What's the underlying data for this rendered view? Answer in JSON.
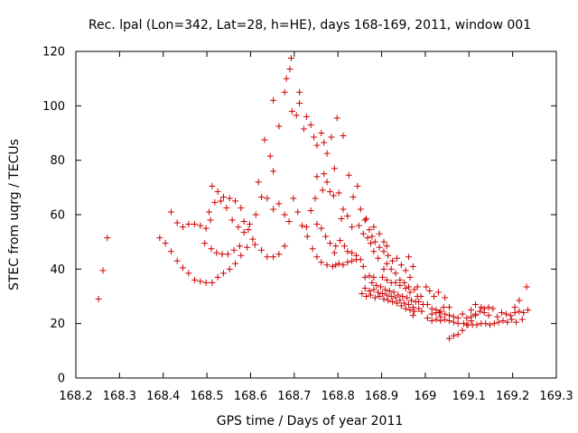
{
  "chart_data": {
    "type": "scatter",
    "title": "Rec. lpal (Lon=342, Lat=28, h=HE), days 168-169, 2011, window 001",
    "xlabel": "GPS time / Days of year 2011",
    "ylabel": "STEC from uqrg / TECUs",
    "xlim": [
      168.2,
      169.3
    ],
    "ylim": [
      0,
      120
    ],
    "xticks": [
      "168.2",
      "168.3",
      "168.4",
      "168.5",
      "168.6",
      "168.7",
      "168.8",
      "168.9",
      "169",
      "169.1",
      "169.2",
      "169.3"
    ],
    "yticks": [
      "0",
      "20",
      "40",
      "60",
      "80",
      "100",
      "120"
    ],
    "grid": false,
    "legend": "none",
    "marker": "+",
    "color": "#cc0000",
    "points": [
      [
        168.252,
        29
      ],
      [
        168.262,
        39.5
      ],
      [
        168.272,
        51.5
      ],
      [
        168.392,
        51.5
      ],
      [
        168.405,
        49.5
      ],
      [
        168.418,
        46.5
      ],
      [
        168.432,
        43
      ],
      [
        168.445,
        40.5
      ],
      [
        168.458,
        38.5
      ],
      [
        168.472,
        36
      ],
      [
        168.485,
        35.5
      ],
      [
        168.498,
        35
      ],
      [
        168.512,
        35
      ],
      [
        168.525,
        37
      ],
      [
        168.538,
        38.5
      ],
      [
        168.552,
        40
      ],
      [
        168.565,
        42
      ],
      [
        168.578,
        45
      ],
      [
        168.592,
        48
      ],
      [
        168.605,
        51
      ],
      [
        168.418,
        61
      ],
      [
        168.432,
        57
      ],
      [
        168.445,
        55.5
      ],
      [
        168.458,
        56.5
      ],
      [
        168.472,
        56.5
      ],
      [
        168.485,
        56
      ],
      [
        168.498,
        55
      ],
      [
        168.508,
        58
      ],
      [
        168.495,
        49.5
      ],
      [
        168.51,
        47.5
      ],
      [
        168.522,
        46
      ],
      [
        168.535,
        45.5
      ],
      [
        168.548,
        45.5
      ],
      [
        168.562,
        47
      ],
      [
        168.575,
        48.5
      ],
      [
        168.512,
        70.5
      ],
      [
        168.525,
        68.5
      ],
      [
        168.538,
        66.5
      ],
      [
        168.552,
        66
      ],
      [
        168.565,
        65
      ],
      [
        168.578,
        62.5
      ],
      [
        168.585,
        57.5
      ],
      [
        168.505,
        61
      ],
      [
        168.518,
        64.5
      ],
      [
        168.532,
        65
      ],
      [
        168.545,
        62.5
      ],
      [
        168.558,
        58
      ],
      [
        168.572,
        55.5
      ],
      [
        168.585,
        53.5
      ],
      [
        168.598,
        56.5
      ],
      [
        168.612,
        60
      ],
      [
        168.625,
        66.5
      ],
      [
        168.638,
        66
      ],
      [
        168.652,
        62
      ],
      [
        168.595,
        54.5
      ],
      [
        168.61,
        49
      ],
      [
        168.625,
        47
      ],
      [
        168.638,
        44.5
      ],
      [
        168.652,
        44.5
      ],
      [
        168.665,
        45.5
      ],
      [
        168.678,
        48.5
      ],
      [
        168.618,
        72
      ],
      [
        168.632,
        87.5
      ],
      [
        168.645,
        81.5
      ],
      [
        168.652,
        76
      ],
      [
        168.652,
        102
      ],
      [
        168.665,
        92.5
      ],
      [
        168.665,
        64
      ],
      [
        168.678,
        60
      ],
      [
        168.688,
        57.5
      ],
      [
        168.678,
        105
      ],
      [
        168.682,
        110
      ],
      [
        168.69,
        113.5
      ],
      [
        168.693,
        117.5
      ],
      [
        168.695,
        98
      ],
      [
        168.705,
        96.5
      ],
      [
        168.712,
        105
      ],
      [
        168.712,
        101
      ],
      [
        168.722,
        91.5
      ],
      [
        168.728,
        96
      ],
      [
        168.738,
        93
      ],
      [
        168.745,
        88.5
      ],
      [
        168.752,
        85.5
      ],
      [
        168.762,
        90
      ],
      [
        168.768,
        86.5
      ],
      [
        168.775,
        82.5
      ],
      [
        168.785,
        88.5
      ],
      [
        168.792,
        77
      ],
      [
        168.798,
        95.5
      ],
      [
        168.812,
        89
      ],
      [
        168.825,
        74.5
      ],
      [
        168.835,
        66.5
      ],
      [
        168.845,
        70.5
      ],
      [
        168.698,
        66
      ],
      [
        168.708,
        61
      ],
      [
        168.718,
        56
      ],
      [
        168.728,
        55.5
      ],
      [
        168.738,
        61.5
      ],
      [
        168.748,
        66
      ],
      [
        168.752,
        74
      ],
      [
        168.765,
        69
      ],
      [
        168.768,
        75
      ],
      [
        168.775,
        72
      ],
      [
        168.782,
        68.5
      ],
      [
        168.79,
        67
      ],
      [
        168.802,
        68
      ],
      [
        168.808,
        58.5
      ],
      [
        168.812,
        62
      ],
      [
        168.822,
        59.5
      ],
      [
        168.832,
        55.5
      ],
      [
        168.73,
        52
      ],
      [
        168.742,
        47.5
      ],
      [
        168.752,
        44.5
      ],
      [
        168.762,
        42.5
      ],
      [
        168.775,
        41.5
      ],
      [
        168.788,
        41
      ],
      [
        168.752,
        56.5
      ],
      [
        168.762,
        55
      ],
      [
        168.772,
        52
      ],
      [
        168.782,
        49.5
      ],
      [
        168.792,
        46
      ],
      [
        168.795,
        41.5
      ],
      [
        168.802,
        42
      ],
      [
        168.812,
        41.5
      ],
      [
        168.822,
        42.5
      ],
      [
        168.832,
        43
      ],
      [
        168.842,
        43.5
      ],
      [
        168.795,
        48.5
      ],
      [
        168.805,
        50.5
      ],
      [
        168.815,
        48.5
      ],
      [
        168.822,
        46.5
      ],
      [
        168.832,
        46
      ],
      [
        168.842,
        45
      ],
      [
        168.852,
        43.5
      ],
      [
        168.858,
        41
      ],
      [
        168.862,
        37
      ],
      [
        168.872,
        37.5
      ],
      [
        168.882,
        37
      ],
      [
        168.848,
        56
      ],
      [
        168.858,
        53
      ],
      [
        168.868,
        51.5
      ],
      [
        168.875,
        49.5
      ],
      [
        168.882,
        46.5
      ],
      [
        168.892,
        44
      ],
      [
        168.862,
        58
      ],
      [
        168.872,
        54.5
      ],
      [
        168.878,
        52
      ],
      [
        168.885,
        50
      ],
      [
        168.895,
        48
      ],
      [
        168.905,
        46.5
      ],
      [
        168.852,
        62
      ],
      [
        168.865,
        58.5
      ],
      [
        168.882,
        55.5
      ],
      [
        168.895,
        53
      ],
      [
        168.905,
        50
      ],
      [
        168.912,
        48.5
      ],
      [
        168.855,
        31
      ],
      [
        168.865,
        30
      ],
      [
        168.875,
        30.5
      ],
      [
        168.885,
        29.5
      ],
      [
        168.895,
        30
      ],
      [
        168.905,
        29
      ],
      [
        168.915,
        28.5
      ],
      [
        168.925,
        28
      ],
      [
        168.935,
        27.5
      ],
      [
        168.945,
        26.5
      ],
      [
        168.955,
        25.5
      ],
      [
        168.965,
        25
      ],
      [
        168.975,
        24.5
      ],
      [
        168.862,
        33
      ],
      [
        168.872,
        32
      ],
      [
        168.882,
        32.5
      ],
      [
        168.892,
        31.5
      ],
      [
        168.902,
        31
      ],
      [
        168.912,
        30.5
      ],
      [
        168.922,
        30
      ],
      [
        168.932,
        29.5
      ],
      [
        168.942,
        28.5
      ],
      [
        168.952,
        27.5
      ],
      [
        168.962,
        27
      ],
      [
        168.972,
        26
      ],
      [
        168.878,
        35
      ],
      [
        168.888,
        34
      ],
      [
        168.898,
        33.5
      ],
      [
        168.908,
        32.5
      ],
      [
        168.918,
        32
      ],
      [
        168.928,
        31.5
      ],
      [
        168.938,
        30.5
      ],
      [
        168.948,
        30
      ],
      [
        168.958,
        29.5
      ],
      [
        168.968,
        28.5
      ],
      [
        168.978,
        28
      ],
      [
        168.905,
        40
      ],
      [
        168.912,
        42
      ],
      [
        168.922,
        40
      ],
      [
        168.932,
        38.5
      ],
      [
        168.942,
        36
      ],
      [
        168.952,
        35
      ],
      [
        168.962,
        33.5
      ],
      [
        168.915,
        45
      ],
      [
        168.925,
        43
      ],
      [
        168.935,
        44
      ],
      [
        168.945,
        41.5
      ],
      [
        168.955,
        39.5
      ],
      [
        168.965,
        37
      ],
      [
        168.932,
        35
      ],
      [
        168.942,
        34
      ],
      [
        168.955,
        33
      ],
      [
        168.965,
        31.5
      ],
      [
        168.975,
        32.5
      ],
      [
        168.982,
        30
      ],
      [
        168.99,
        30
      ],
      [
        168.902,
        37
      ],
      [
        168.912,
        36
      ],
      [
        168.922,
        35
      ],
      [
        168.962,
        44.5
      ],
      [
        168.972,
        41
      ],
      [
        168.982,
        33.5
      ],
      [
        168.972,
        23
      ],
      [
        168.985,
        25.5
      ],
      [
        168.992,
        24.5
      ],
      [
        169.005,
        22
      ],
      [
        169.015,
        21
      ],
      [
        169.025,
        21.5
      ],
      [
        169.035,
        21
      ],
      [
        169.002,
        33.5
      ],
      [
        169.01,
        32
      ],
      [
        169.02,
        30
      ],
      [
        169.03,
        31.5
      ],
      [
        169.045,
        29.5
      ],
      [
        169.055,
        26
      ],
      [
        169.005,
        27
      ],
      [
        169.015,
        25.5
      ],
      [
        169.025,
        25
      ],
      [
        169.035,
        24.5
      ],
      [
        169.045,
        23.5
      ],
      [
        169.055,
        23
      ],
      [
        169.065,
        22.5
      ],
      [
        169.015,
        23.5
      ],
      [
        169.025,
        24
      ],
      [
        169.035,
        22.5
      ],
      [
        169.045,
        21.5
      ],
      [
        169.055,
        21
      ],
      [
        169.065,
        20.5
      ],
      [
        169.075,
        20
      ],
      [
        169.055,
        14.5
      ],
      [
        169.065,
        15.5
      ],
      [
        169.075,
        16
      ],
      [
        169.085,
        17.5
      ],
      [
        169.095,
        19.5
      ],
      [
        169.105,
        21
      ],
      [
        169.115,
        23
      ],
      [
        169.085,
        23.5
      ],
      [
        169.095,
        22
      ],
      [
        169.105,
        22.5
      ],
      [
        169.115,
        23.5
      ],
      [
        169.125,
        24.5
      ],
      [
        169.135,
        24
      ],
      [
        169.145,
        23
      ],
      [
        169.088,
        20
      ],
      [
        169.098,
        19.5
      ],
      [
        169.108,
        19.5
      ],
      [
        169.118,
        19.5
      ],
      [
        169.128,
        20
      ],
      [
        169.138,
        20
      ],
      [
        169.148,
        19.5
      ],
      [
        169.105,
        25
      ],
      [
        169.115,
        27
      ],
      [
        169.128,
        26
      ],
      [
        169.135,
        25.5
      ],
      [
        169.145,
        26
      ],
      [
        169.155,
        25.5
      ],
      [
        169.158,
        20
      ],
      [
        169.168,
        20.5
      ],
      [
        169.178,
        21
      ],
      [
        169.188,
        20.5
      ],
      [
        169.198,
        21.5
      ],
      [
        169.208,
        20.5
      ],
      [
        169.165,
        22.5
      ],
      [
        169.175,
        24
      ],
      [
        169.185,
        23.5
      ],
      [
        169.195,
        23
      ],
      [
        169.205,
        24
      ],
      [
        169.215,
        24.5
      ],
      [
        169.205,
        26
      ],
      [
        169.215,
        28.5
      ],
      [
        169.225,
        24
      ],
      [
        169.232,
        33.5
      ],
      [
        169.235,
        25
      ],
      [
        169.222,
        21.5
      ],
      [
        168.985,
        28
      ],
      [
        168.995,
        27
      ],
      [
        169.032,
        24
      ],
      [
        169.042,
        26
      ],
      [
        169.075,
        22
      ]
    ]
  }
}
